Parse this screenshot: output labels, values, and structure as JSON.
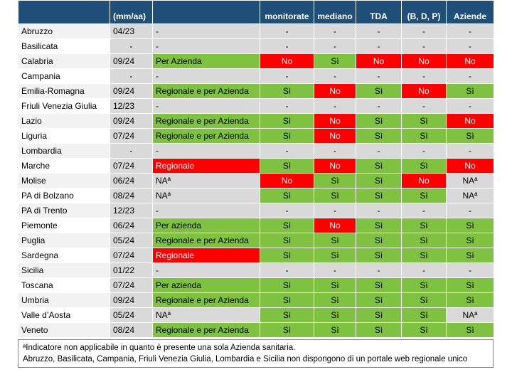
{
  "header": {
    "date_sub": "(mm/aa)",
    "col_monitorate": "monitorate",
    "col_mediano": "mediano",
    "col_tda": "TDA",
    "col_bdp": "(B, D, P)",
    "col_aziende": "Aziende"
  },
  "rows": [
    {
      "region": "Abruzzo",
      "date": "04/23",
      "portal": "-",
      "portal_color": "grey",
      "cells": [
        [
          "-",
          "grey"
        ],
        [
          "-",
          "grey"
        ],
        [
          "-",
          "grey"
        ],
        [
          "-",
          "grey"
        ],
        [
          "-",
          "grey"
        ]
      ]
    },
    {
      "region": "Basilicata",
      "date": "-",
      "portal": "-",
      "portal_color": "grey",
      "cells": [
        [
          "-",
          "grey"
        ],
        [
          "-",
          "grey"
        ],
        [
          "-",
          "grey"
        ],
        [
          "-",
          "grey"
        ],
        [
          "-",
          "grey"
        ]
      ]
    },
    {
      "region": "Calabria",
      "date": "09/24",
      "portal": "Per Azienda",
      "portal_color": "green",
      "cells": [
        [
          "No",
          "red"
        ],
        [
          "Sì",
          "green"
        ],
        [
          "No",
          "red"
        ],
        [
          "No",
          "red"
        ],
        [
          "No",
          "red"
        ]
      ]
    },
    {
      "region": "Campania",
      "date": "-",
      "portal": "-",
      "portal_color": "grey",
      "cells": [
        [
          "-",
          "grey"
        ],
        [
          "-",
          "grey"
        ],
        [
          "-",
          "grey"
        ],
        [
          "-",
          "grey"
        ],
        [
          "-",
          "grey"
        ]
      ]
    },
    {
      "region": "Emilia-Romagna",
      "date": "09/24",
      "portal": "Regionale e per Azienda",
      "portal_color": "green",
      "cells": [
        [
          "Sì",
          "green"
        ],
        [
          "No",
          "red"
        ],
        [
          "Sì",
          "green"
        ],
        [
          "No",
          "red"
        ],
        [
          "Sì",
          "green"
        ]
      ]
    },
    {
      "region": "Friuli Venezia Giulia",
      "date": "12/23",
      "portal": "-",
      "portal_color": "grey",
      "cells": [
        [
          "-",
          "grey"
        ],
        [
          "-",
          "grey"
        ],
        [
          "-",
          "grey"
        ],
        [
          "-",
          "grey"
        ],
        [
          "-",
          "grey"
        ]
      ]
    },
    {
      "region": "Lazio",
      "date": "09/24",
      "portal": "Regionale e per Azienda",
      "portal_color": "green",
      "cells": [
        [
          "Sì",
          "green"
        ],
        [
          "No",
          "red"
        ],
        [
          "Sì",
          "green"
        ],
        [
          "Sì",
          "green"
        ],
        [
          "No",
          "red"
        ]
      ]
    },
    {
      "region": "Liguria",
      "date": "07/24",
      "portal": "Regionale e per Azienda",
      "portal_color": "green",
      "cells": [
        [
          "Sì",
          "green"
        ],
        [
          "No",
          "red"
        ],
        [
          "Sì",
          "green"
        ],
        [
          "Sì",
          "green"
        ],
        [
          "Sì",
          "green"
        ]
      ]
    },
    {
      "region": "Lombardia",
      "date": "-",
      "portal": "-",
      "portal_color": "grey",
      "cells": [
        [
          "-",
          "grey"
        ],
        [
          "-",
          "grey"
        ],
        [
          "-",
          "grey"
        ],
        [
          "-",
          "grey"
        ],
        [
          "-",
          "grey"
        ]
      ]
    },
    {
      "region": "Marche",
      "date": "07/24",
      "portal": "Regionale",
      "portal_color": "red",
      "cells": [
        [
          "Sì",
          "green"
        ],
        [
          "No",
          "red"
        ],
        [
          "Sì",
          "green"
        ],
        [
          "Sì",
          "green"
        ],
        [
          "No",
          "red"
        ]
      ]
    },
    {
      "region": "Molise",
      "date": "06/24",
      "portal": "NAª",
      "portal_color": "grey",
      "cells": [
        [
          "No",
          "red"
        ],
        [
          "Sì",
          "green"
        ],
        [
          "Sì",
          "green"
        ],
        [
          "No",
          "red"
        ],
        [
          "NAª",
          "grey"
        ]
      ]
    },
    {
      "region": "PA di Bolzano",
      "date": "08/24",
      "portal": "NAª",
      "portal_color": "grey",
      "cells": [
        [
          "Sì",
          "green"
        ],
        [
          "Sì",
          "green"
        ],
        [
          "Sì",
          "green"
        ],
        [
          "Sì",
          "green"
        ],
        [
          "NAª",
          "grey"
        ]
      ]
    },
    {
      "region": "PA di Trento",
      "date": "12/23",
      "portal": "-",
      "portal_color": "grey",
      "cells": [
        [
          "-",
          "grey"
        ],
        [
          "-",
          "grey"
        ],
        [
          "-",
          "grey"
        ],
        [
          "-",
          "grey"
        ],
        [
          "-",
          "grey"
        ]
      ]
    },
    {
      "region": "Piemonte",
      "date": "06/24",
      "portal": "Per azienda",
      "portal_color": "green",
      "cells": [
        [
          "Sì",
          "green"
        ],
        [
          "No",
          "red"
        ],
        [
          "Sì",
          "green"
        ],
        [
          "Sì",
          "green"
        ],
        [
          "Sì",
          "green"
        ]
      ]
    },
    {
      "region": "Puglia",
      "date": "05/24",
      "portal": "Regionale e per Azienda",
      "portal_color": "green",
      "cells": [
        [
          "Sì",
          "green"
        ],
        [
          "Sì",
          "green"
        ],
        [
          "Sì",
          "green"
        ],
        [
          "Sì",
          "green"
        ],
        [
          "Sì",
          "green"
        ]
      ]
    },
    {
      "region": "Sardegna",
      "date": "07/24",
      "portal": "Regionale",
      "portal_color": "red",
      "cells": [
        [
          "Sì",
          "green"
        ],
        [
          "Sì",
          "green"
        ],
        [
          "Sì",
          "green"
        ],
        [
          "Sì",
          "green"
        ],
        [
          "Sì",
          "green"
        ]
      ]
    },
    {
      "region": "Sicilia",
      "date": "01/22",
      "portal": "-",
      "portal_color": "grey",
      "cells": [
        [
          "-",
          "grey"
        ],
        [
          "-",
          "grey"
        ],
        [
          "-",
          "grey"
        ],
        [
          "-",
          "grey"
        ],
        [
          "-",
          "grey"
        ]
      ]
    },
    {
      "region": "Toscana",
      "date": "07/24",
      "portal": "Per azienda",
      "portal_color": "green",
      "cells": [
        [
          "Sì",
          "green"
        ],
        [
          "Sì",
          "green"
        ],
        [
          "Sì",
          "green"
        ],
        [
          "Sì",
          "green"
        ],
        [
          "Sì",
          "green"
        ]
      ]
    },
    {
      "region": "Umbria",
      "date": "09/24",
      "portal": "Regionale e per Azienda",
      "portal_color": "green",
      "cells": [
        [
          "Sì",
          "green"
        ],
        [
          "Sì",
          "green"
        ],
        [
          "Sì",
          "green"
        ],
        [
          "Sì",
          "green"
        ],
        [
          "Sì",
          "green"
        ]
      ]
    },
    {
      "region": "Valle d’Aosta",
      "date": "05/24",
      "portal": "NAª",
      "portal_color": "grey",
      "cells": [
        [
          "Sì",
          "green"
        ],
        [
          "Sì",
          "green"
        ],
        [
          "Sì",
          "green"
        ],
        [
          "Sì",
          "green"
        ],
        [
          "NAª",
          "grey"
        ]
      ]
    },
    {
      "region": "Veneto",
      "date": "08/24",
      "portal": "Regionale e per Azienda",
      "portal_color": "green",
      "cells": [
        [
          "Sì",
          "green"
        ],
        [
          "Sì",
          "green"
        ],
        [
          "Sì",
          "green"
        ],
        [
          "Sì",
          "green"
        ],
        [
          "Sì",
          "green"
        ]
      ]
    }
  ],
  "footnotes": {
    "note_a": "ªIndicatore non applicabile in quanto è presente una sola Azienda sanitaria.",
    "note_b": "Abruzzo, Basilicata, Campania, Friuli Venezia Giulia, Lombardia e Sicilia non dispongono di un portale web regionale unico"
  },
  "colors": {
    "header_bg": "#1f4e79",
    "green": "#7fc241",
    "red": "#ff0000",
    "grey": "#d9d9d9"
  }
}
